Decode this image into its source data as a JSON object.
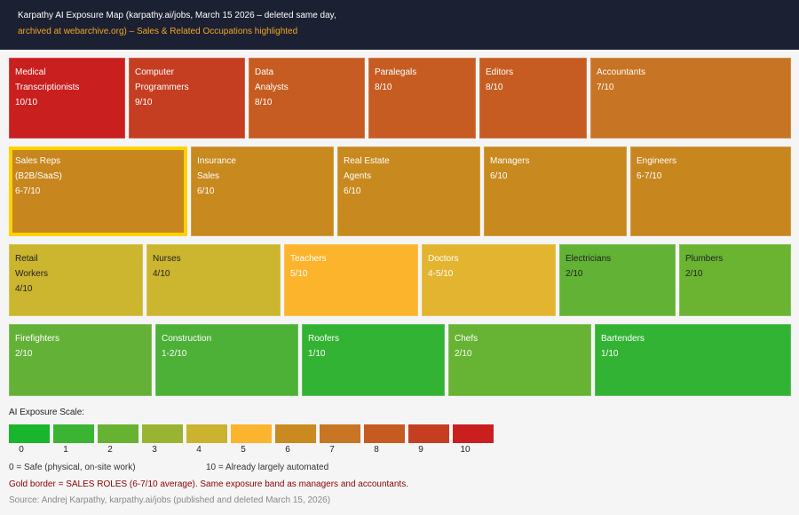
{
  "header": {
    "line1": "Karpathy AI Exposure Map (karpathy.ai/jobs, March 15 2026 – deleted same day,",
    "line2": "archived at webarchive.org) – Sales & Related Occupations highlighted"
  },
  "chart_data": {
    "type": "heatmap",
    "title": "Karpathy AI Exposure Map",
    "value_scale": [
      0,
      10
    ],
    "highlight_color": "#ffd100",
    "tiles": [
      {
        "name_lines": [
          "Medical",
          "Transcriptionists"
        ],
        "score_label": "10/10",
        "score": 10,
        "color": "#c91f1f",
        "highlighted": false
      },
      {
        "name_lines": [
          "Computer",
          "Programmers"
        ],
        "score_label": "9/10",
        "score": 9,
        "color": "#c53e22",
        "highlighted": false
      },
      {
        "name_lines": [
          "Data",
          "Analysts"
        ],
        "score_label": "8/10",
        "score": 8,
        "color": "#c65c22",
        "highlighted": false
      },
      {
        "name_lines": [
          "Paralegals"
        ],
        "score_label": "8/10",
        "score": 8,
        "color": "#c65c22",
        "highlighted": false
      },
      {
        "name_lines": [
          "Editors"
        ],
        "score_label": "8/10",
        "score": 8,
        "color": "#c65c22",
        "highlighted": false
      },
      {
        "name_lines": [
          "Accountants"
        ],
        "score_label": "7/10",
        "score": 7,
        "color": "#c77424",
        "highlighted": false
      },
      {
        "name_lines": [
          "Sales Reps",
          "(B2B/SaaS)"
        ],
        "score_label": "6-7/10",
        "score": 6.5,
        "color": "#c8861f",
        "highlighted": true
      },
      {
        "name_lines": [
          "Insurance",
          "Sales"
        ],
        "score_label": "6/10",
        "score": 6,
        "color": "#c8891f",
        "highlighted": false
      },
      {
        "name_lines": [
          "Real Estate",
          "Agents"
        ],
        "score_label": "6/10",
        "score": 6,
        "color": "#c8891f",
        "highlighted": false
      },
      {
        "name_lines": [
          "Managers"
        ],
        "score_label": "6/10",
        "score": 6,
        "color": "#c8891f",
        "highlighted": false
      },
      {
        "name_lines": [
          "Engineers"
        ],
        "score_label": "6-7/10",
        "score": 6.5,
        "color": "#c8861f",
        "highlighted": false
      },
      {
        "name_lines": [
          "Retail",
          "Workers"
        ],
        "score_label": "4/10",
        "score": 4,
        "color": "#ccb62f",
        "highlighted": false
      },
      {
        "name_lines": [
          "Nurses"
        ],
        "score_label": "4/10",
        "score": 4,
        "color": "#ccb62f",
        "highlighted": false
      },
      {
        "name_lines": [
          "Teachers"
        ],
        "score_label": "5/10",
        "score": 5,
        "color": "#fdb42d",
        "highlighted": false
      },
      {
        "name_lines": [
          "Doctors"
        ],
        "score_label": "4-5/10",
        "score": 4.5,
        "color": "#e3b42f",
        "highlighted": false
      },
      {
        "name_lines": [
          "Electricians"
        ],
        "score_label": "2/10",
        "score": 2,
        "color": "#62b335",
        "highlighted": false
      },
      {
        "name_lines": [
          "Plumbers"
        ],
        "score_label": "2/10",
        "score": 2,
        "color": "#6ab432",
        "highlighted": false
      },
      {
        "name_lines": [
          "Firefighters"
        ],
        "score_label": "2/10",
        "score": 2,
        "color": "#64b138",
        "highlighted": false
      },
      {
        "name_lines": [
          "Construction"
        ],
        "score_label": "1-2/10",
        "score": 1.5,
        "color": "#4db138",
        "highlighted": false
      },
      {
        "name_lines": [
          "Roofers"
        ],
        "score_label": "1/10",
        "score": 1,
        "color": "#33b333",
        "highlighted": false
      },
      {
        "name_lines": [
          "Chefs"
        ],
        "score_label": "2/10",
        "score": 2,
        "color": "#67b334",
        "highlighted": false
      },
      {
        "name_lines": [
          "Bartenders"
        ],
        "score_label": "1/10",
        "score": 1,
        "color": "#33b333",
        "highlighted": false
      }
    ],
    "legend": {
      "title": "AI Exposure Scale:",
      "levels": [
        0,
        1,
        2,
        3,
        4,
        5,
        6,
        7,
        8,
        9,
        10
      ],
      "colors": [
        "#19b52c",
        "#3ab432",
        "#68b232",
        "#99b332",
        "#cbb22f",
        "#fcb42e",
        "#c98a1f",
        "#c87524",
        "#c65b22",
        "#c53e22",
        "#c91f1f"
      ],
      "low_label": "0 = Safe (physical, on-site work)",
      "high_label": "10 = Already largely automated",
      "note": "Gold border = SALES ROLES (6-7/10 average). Same exposure band as managers and accountants."
    },
    "source": "Source: Andrej Karpathy, karpathy.ai/jobs (published and deleted March 15, 2026)"
  }
}
